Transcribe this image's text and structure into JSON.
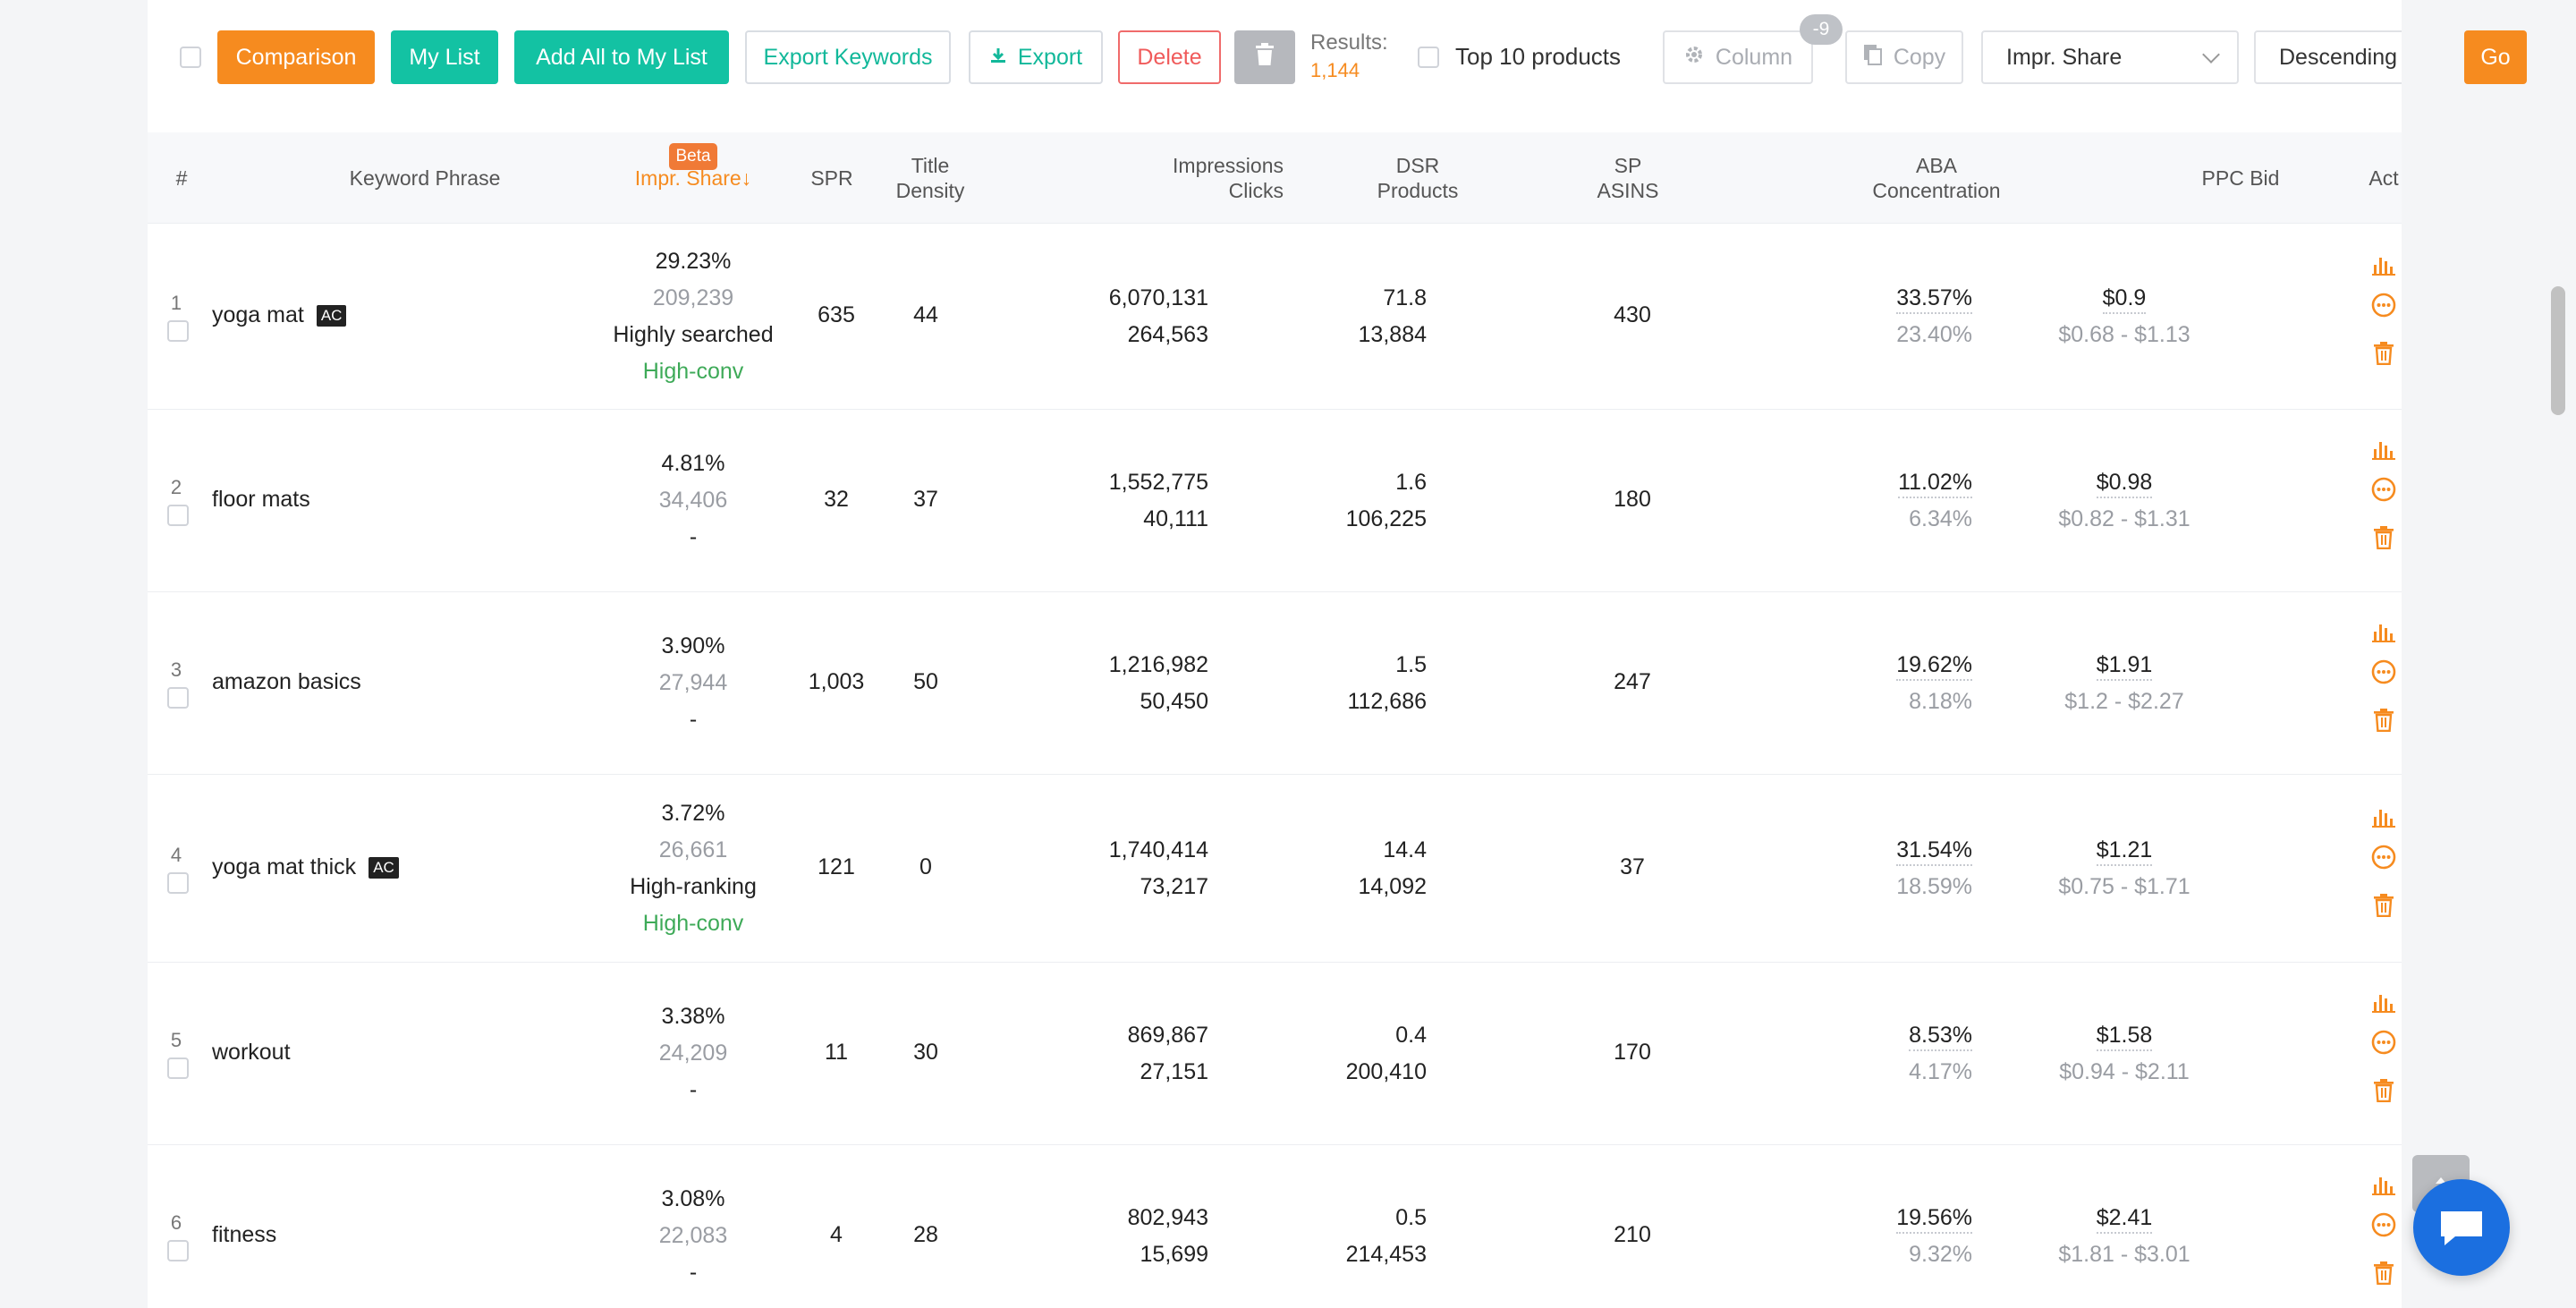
{
  "toolbar": {
    "comparison": "Comparison",
    "my_list": "My List",
    "add_all": "Add All to My List",
    "export_keywords": "Export Keywords",
    "export": "Export",
    "delete": "Delete",
    "results_label": "Results:",
    "results_value": "1,144",
    "top10": "Top 10 products",
    "column": "Column",
    "column_badge": "-9",
    "copy": "Copy",
    "sort_field": "Impr. Share",
    "sort_order": "Descending",
    "go": "Go"
  },
  "columns": {
    "index": "#",
    "keyword": "Keyword Phrase",
    "impr_beta": "Beta",
    "impr": "Impr. Share↓",
    "spr": "SPR",
    "title_density_1": "Title",
    "title_density_2": "Density",
    "impr_clicks_1": "Impressions",
    "impr_clicks_2": "Clicks",
    "dsr_1": "DSR",
    "dsr_2": "Products",
    "sp_1": "SP",
    "sp_2": "ASINS",
    "aba_1": "ABA",
    "aba_2": "Concentration",
    "ppc": "PPC Bid",
    "act": "Act"
  },
  "rows": [
    {
      "index": "1",
      "keyword": "yoga mat",
      "ac": "AC",
      "share": "29.23%",
      "share_count": "209,239",
      "tag1": "Highly searched",
      "tag2": "High-conv",
      "spr": "635",
      "density": "44",
      "impressions": "6,070,131",
      "clicks": "264,563",
      "dsr": "71.8",
      "products": "13,884",
      "asins": "430",
      "aba": "33.57%",
      "aba2": "23.40%",
      "bid": "$0.9",
      "bid_range": "$0.68 - $1.13"
    },
    {
      "index": "2",
      "keyword": "floor mats",
      "ac": "",
      "share": "4.81%",
      "share_count": "34,406",
      "tag1": "-",
      "tag2": "",
      "spr": "32",
      "density": "37",
      "impressions": "1,552,775",
      "clicks": "40,111",
      "dsr": "1.6",
      "products": "106,225",
      "asins": "180",
      "aba": "11.02%",
      "aba2": "6.34%",
      "bid": "$0.98",
      "bid_range": "$0.82 - $1.31"
    },
    {
      "index": "3",
      "keyword": "amazon basics",
      "ac": "",
      "share": "3.90%",
      "share_count": "27,944",
      "tag1": "-",
      "tag2": "",
      "spr": "1,003",
      "density": "50",
      "impressions": "1,216,982",
      "clicks": "50,450",
      "dsr": "1.5",
      "products": "112,686",
      "asins": "247",
      "aba": "19.62%",
      "aba2": "8.18%",
      "bid": "$1.91",
      "bid_range": "$1.2 - $2.27"
    },
    {
      "index": "4",
      "keyword": "yoga mat thick",
      "ac": "AC",
      "share": "3.72%",
      "share_count": "26,661",
      "tag1": "High-ranking",
      "tag2": "High-conv",
      "spr": "121",
      "density": "0",
      "impressions": "1,740,414",
      "clicks": "73,217",
      "dsr": "14.4",
      "products": "14,092",
      "asins": "37",
      "aba": "31.54%",
      "aba2": "18.59%",
      "bid": "$1.21",
      "bid_range": "$0.75 - $1.71"
    },
    {
      "index": "5",
      "keyword": "workout",
      "ac": "",
      "share": "3.38%",
      "share_count": "24,209",
      "tag1": "-",
      "tag2": "",
      "spr": "11",
      "density": "30",
      "impressions": "869,867",
      "clicks": "27,151",
      "dsr": "0.4",
      "products": "200,410",
      "asins": "170",
      "aba": "8.53%",
      "aba2": "4.17%",
      "bid": "$1.58",
      "bid_range": "$0.94 - $2.11"
    },
    {
      "index": "6",
      "keyword": "fitness",
      "ac": "",
      "share": "3.08%",
      "share_count": "22,083",
      "tag1": "-",
      "tag2": "",
      "spr": "4",
      "density": "28",
      "impressions": "802,943",
      "clicks": "15,699",
      "dsr": "0.5",
      "products": "214,453",
      "asins": "210",
      "aba": "19.56%",
      "aba2": "9.32%",
      "bid": "$2.41",
      "bid_range": "$1.81 - $3.01"
    }
  ],
  "icons": {
    "chart": "bar-chart-icon",
    "more": "more-circle-icon",
    "trash": "trash-icon"
  },
  "colors": {
    "accent_orange": "#f68b1f",
    "accent_teal": "#13c2a3",
    "danger": "#f05b5b",
    "positive": "#3eaa58",
    "chat": "#1b6fe0"
  }
}
